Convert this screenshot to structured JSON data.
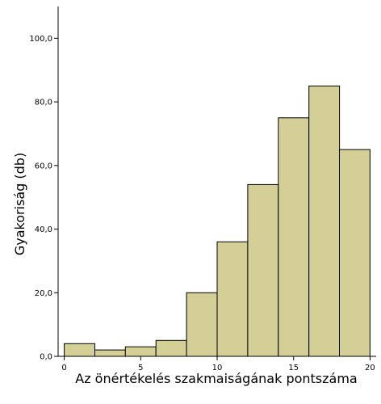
{
  "chart_data": {
    "type": "bar",
    "subtype": "histogram",
    "title": "",
    "xlabel": "Az önértékelés szakmaiságának pontszáma",
    "ylabel": "Gyakoriság (db)",
    "bin_width": 2,
    "bins": [
      {
        "start": 0,
        "end": 2,
        "value": 4
      },
      {
        "start": 2,
        "end": 4,
        "value": 2
      },
      {
        "start": 4,
        "end": 6,
        "value": 3
      },
      {
        "start": 6,
        "end": 8,
        "value": 5
      },
      {
        "start": 8,
        "end": 10,
        "value": 20
      },
      {
        "start": 10,
        "end": 12,
        "value": 36
      },
      {
        "start": 12,
        "end": 14,
        "value": 54
      },
      {
        "start": 14,
        "end": 16,
        "value": 75
      },
      {
        "start": 16,
        "end": 18,
        "value": 85
      },
      {
        "start": 18,
        "end": 20,
        "value": 65
      }
    ],
    "x_ticks": [
      0,
      5,
      10,
      15,
      20
    ],
    "x_tick_labels": [
      "0",
      "5",
      "10",
      "15",
      "20"
    ],
    "y_ticks": [
      0,
      20,
      40,
      60,
      80,
      100
    ],
    "y_tick_labels": [
      "0,0",
      "20,0",
      "40,0",
      "60,0",
      "80,0",
      "100,0"
    ],
    "xlim": [
      -0.4,
      20.4
    ],
    "ylim": [
      0,
      110
    ],
    "grid": false,
    "bar_color": "#d3cf97",
    "bar_edge_color": "#000000"
  }
}
